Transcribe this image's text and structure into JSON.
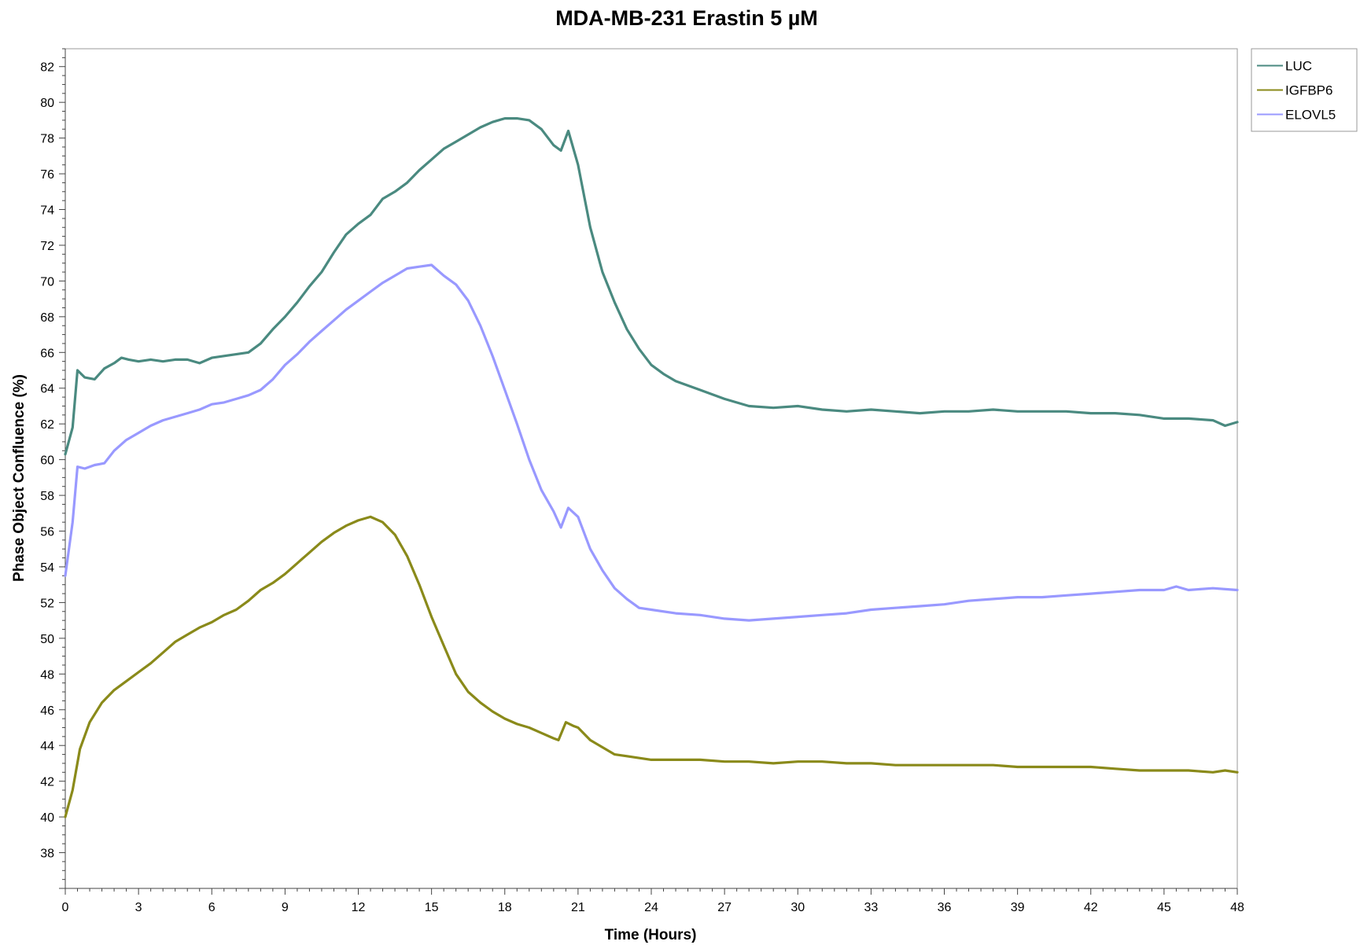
{
  "chart_data": {
    "type": "line",
    "title": "MDA-MB-231 Erastin 5 µM",
    "xlabel": "Time (Hours)",
    "ylabel": "Phase Object Confluence (%)",
    "xlim": [
      0,
      48
    ],
    "ylim": [
      36,
      83
    ],
    "xticks": [
      "0",
      "3",
      "6",
      "9",
      "12",
      "15",
      "18",
      "21",
      "24",
      "27",
      "30",
      "33",
      "36",
      "39",
      "42",
      "45",
      "48"
    ],
    "yticks": [
      "38",
      "40",
      "42",
      "44",
      "46",
      "48",
      "50",
      "52",
      "54",
      "56",
      "58",
      "60",
      "62",
      "64",
      "66",
      "68",
      "70",
      "72",
      "74",
      "76",
      "78",
      "80",
      "82"
    ],
    "grid": false,
    "legend": "top-right",
    "series": [
      {
        "name": "LUC",
        "color": "#4a8a80",
        "x": [
          0,
          0.3,
          0.5,
          0.8,
          1.2,
          1.6,
          2.0,
          2.3,
          2.6,
          3.0,
          3.5,
          4.0,
          4.5,
          5.0,
          5.5,
          6.0,
          6.5,
          7.0,
          7.5,
          8.0,
          8.5,
          9.0,
          9.5,
          10.0,
          10.5,
          11.0,
          11.5,
          12.0,
          12.5,
          13.0,
          13.5,
          14.0,
          14.5,
          15.0,
          15.5,
          16.0,
          16.5,
          17.0,
          17.5,
          18.0,
          18.5,
          19.0,
          19.5,
          20.0,
          20.3,
          20.6,
          21.0,
          21.5,
          22.0,
          22.5,
          23.0,
          23.5,
          24.0,
          24.5,
          25.0,
          26.0,
          27.0,
          28.0,
          29.0,
          30.0,
          31.0,
          32.0,
          33.0,
          34.0,
          35.0,
          36.0,
          37.0,
          38.0,
          39.0,
          40.0,
          41.0,
          42.0,
          43.0,
          44.0,
          45.0,
          46.0,
          47.0,
          47.5,
          48.0
        ],
        "values": [
          60.3,
          61.8,
          65.0,
          64.6,
          64.5,
          65.1,
          65.4,
          65.7,
          65.6,
          65.5,
          65.6,
          65.5,
          65.6,
          65.6,
          65.4,
          65.7,
          65.8,
          65.9,
          66.0,
          66.5,
          67.3,
          68.0,
          68.8,
          69.7,
          70.5,
          71.6,
          72.6,
          73.2,
          73.7,
          74.6,
          75.0,
          75.5,
          76.2,
          76.8,
          77.4,
          77.8,
          78.2,
          78.6,
          78.9,
          79.1,
          79.1,
          79.0,
          78.5,
          77.6,
          77.3,
          78.4,
          76.5,
          73.0,
          70.5,
          68.8,
          67.3,
          66.2,
          65.3,
          64.8,
          64.4,
          63.9,
          63.4,
          63.0,
          62.9,
          63.0,
          62.8,
          62.7,
          62.8,
          62.7,
          62.6,
          62.7,
          62.7,
          62.8,
          62.7,
          62.7,
          62.7,
          62.6,
          62.6,
          62.5,
          62.3,
          62.3,
          62.2,
          61.9,
          62.1
        ]
      },
      {
        "name": "IGFBP6",
        "color": "#8a8a1a",
        "x": [
          0,
          0.3,
          0.6,
          1.0,
          1.5,
          2.0,
          2.5,
          3.0,
          3.5,
          4.0,
          4.5,
          5.0,
          5.5,
          6.0,
          6.5,
          7.0,
          7.5,
          8.0,
          8.5,
          9.0,
          9.5,
          10.0,
          10.5,
          11.0,
          11.5,
          12.0,
          12.5,
          13.0,
          13.5,
          14.0,
          14.5,
          15.0,
          15.5,
          16.0,
          16.5,
          17.0,
          17.5,
          18.0,
          18.5,
          19.0,
          19.5,
          20.0,
          20.2,
          20.5,
          20.8,
          21.0,
          21.5,
          22.0,
          22.5,
          23.0,
          24.0,
          25.0,
          26.0,
          27.0,
          28.0,
          29.0,
          30.0,
          31.0,
          32.0,
          33.0,
          34.0,
          35.0,
          36.0,
          37.0,
          38.0,
          39.0,
          40.0,
          41.0,
          42.0,
          43.0,
          44.0,
          45.0,
          46.0,
          47.0,
          47.5,
          48.0
        ],
        "values": [
          40.0,
          41.5,
          43.8,
          45.3,
          46.4,
          47.1,
          47.6,
          48.1,
          48.6,
          49.2,
          49.8,
          50.2,
          50.6,
          50.9,
          51.3,
          51.6,
          52.1,
          52.7,
          53.1,
          53.6,
          54.2,
          54.8,
          55.4,
          55.9,
          56.3,
          56.6,
          56.8,
          56.5,
          55.8,
          54.6,
          53.0,
          51.2,
          49.6,
          48.0,
          47.0,
          46.4,
          45.9,
          45.5,
          45.2,
          45.0,
          44.7,
          44.4,
          44.3,
          45.3,
          45.1,
          45.0,
          44.3,
          43.9,
          43.5,
          43.4,
          43.2,
          43.2,
          43.2,
          43.1,
          43.1,
          43.0,
          43.1,
          43.1,
          43.0,
          43.0,
          42.9,
          42.9,
          42.9,
          42.9,
          42.9,
          42.8,
          42.8,
          42.8,
          42.8,
          42.7,
          42.6,
          42.6,
          42.6,
          42.5,
          42.6,
          42.5
        ]
      },
      {
        "name": "ELOVL5",
        "color": "#9999ff",
        "x": [
          0,
          0.3,
          0.5,
          0.8,
          1.2,
          1.6,
          2.0,
          2.5,
          3.0,
          3.5,
          4.0,
          4.5,
          5.0,
          5.5,
          6.0,
          6.5,
          7.0,
          7.5,
          8.0,
          8.5,
          9.0,
          9.5,
          10.0,
          10.5,
          11.0,
          11.5,
          12.0,
          12.5,
          13.0,
          13.5,
          14.0,
          14.5,
          15.0,
          15.5,
          16.0,
          16.5,
          17.0,
          17.5,
          18.0,
          18.5,
          19.0,
          19.5,
          20.0,
          20.3,
          20.6,
          21.0,
          21.5,
          22.0,
          22.5,
          23.0,
          23.5,
          24.0,
          25.0,
          26.0,
          27.0,
          28.0,
          29.0,
          30.0,
          31.0,
          32.0,
          33.0,
          34.0,
          35.0,
          36.0,
          37.0,
          38.0,
          39.0,
          40.0,
          41.0,
          42.0,
          43.0,
          44.0,
          45.0,
          45.5,
          46.0,
          47.0,
          48.0
        ],
        "values": [
          53.5,
          56.5,
          59.6,
          59.5,
          59.7,
          59.8,
          60.5,
          61.1,
          61.5,
          61.9,
          62.2,
          62.4,
          62.6,
          62.8,
          63.1,
          63.2,
          63.4,
          63.6,
          63.9,
          64.5,
          65.3,
          65.9,
          66.6,
          67.2,
          67.8,
          68.4,
          68.9,
          69.4,
          69.9,
          70.3,
          70.7,
          70.8,
          70.9,
          70.3,
          69.8,
          68.9,
          67.5,
          65.8,
          63.9,
          62.0,
          60.0,
          58.3,
          57.1,
          56.2,
          57.3,
          56.8,
          55.0,
          53.8,
          52.8,
          52.2,
          51.7,
          51.6,
          51.4,
          51.3,
          51.1,
          51.0,
          51.1,
          51.2,
          51.3,
          51.4,
          51.6,
          51.7,
          51.8,
          51.9,
          52.1,
          52.2,
          52.3,
          52.3,
          52.4,
          52.5,
          52.6,
          52.7,
          52.7,
          52.9,
          52.7,
          52.8,
          52.7
        ]
      }
    ]
  }
}
